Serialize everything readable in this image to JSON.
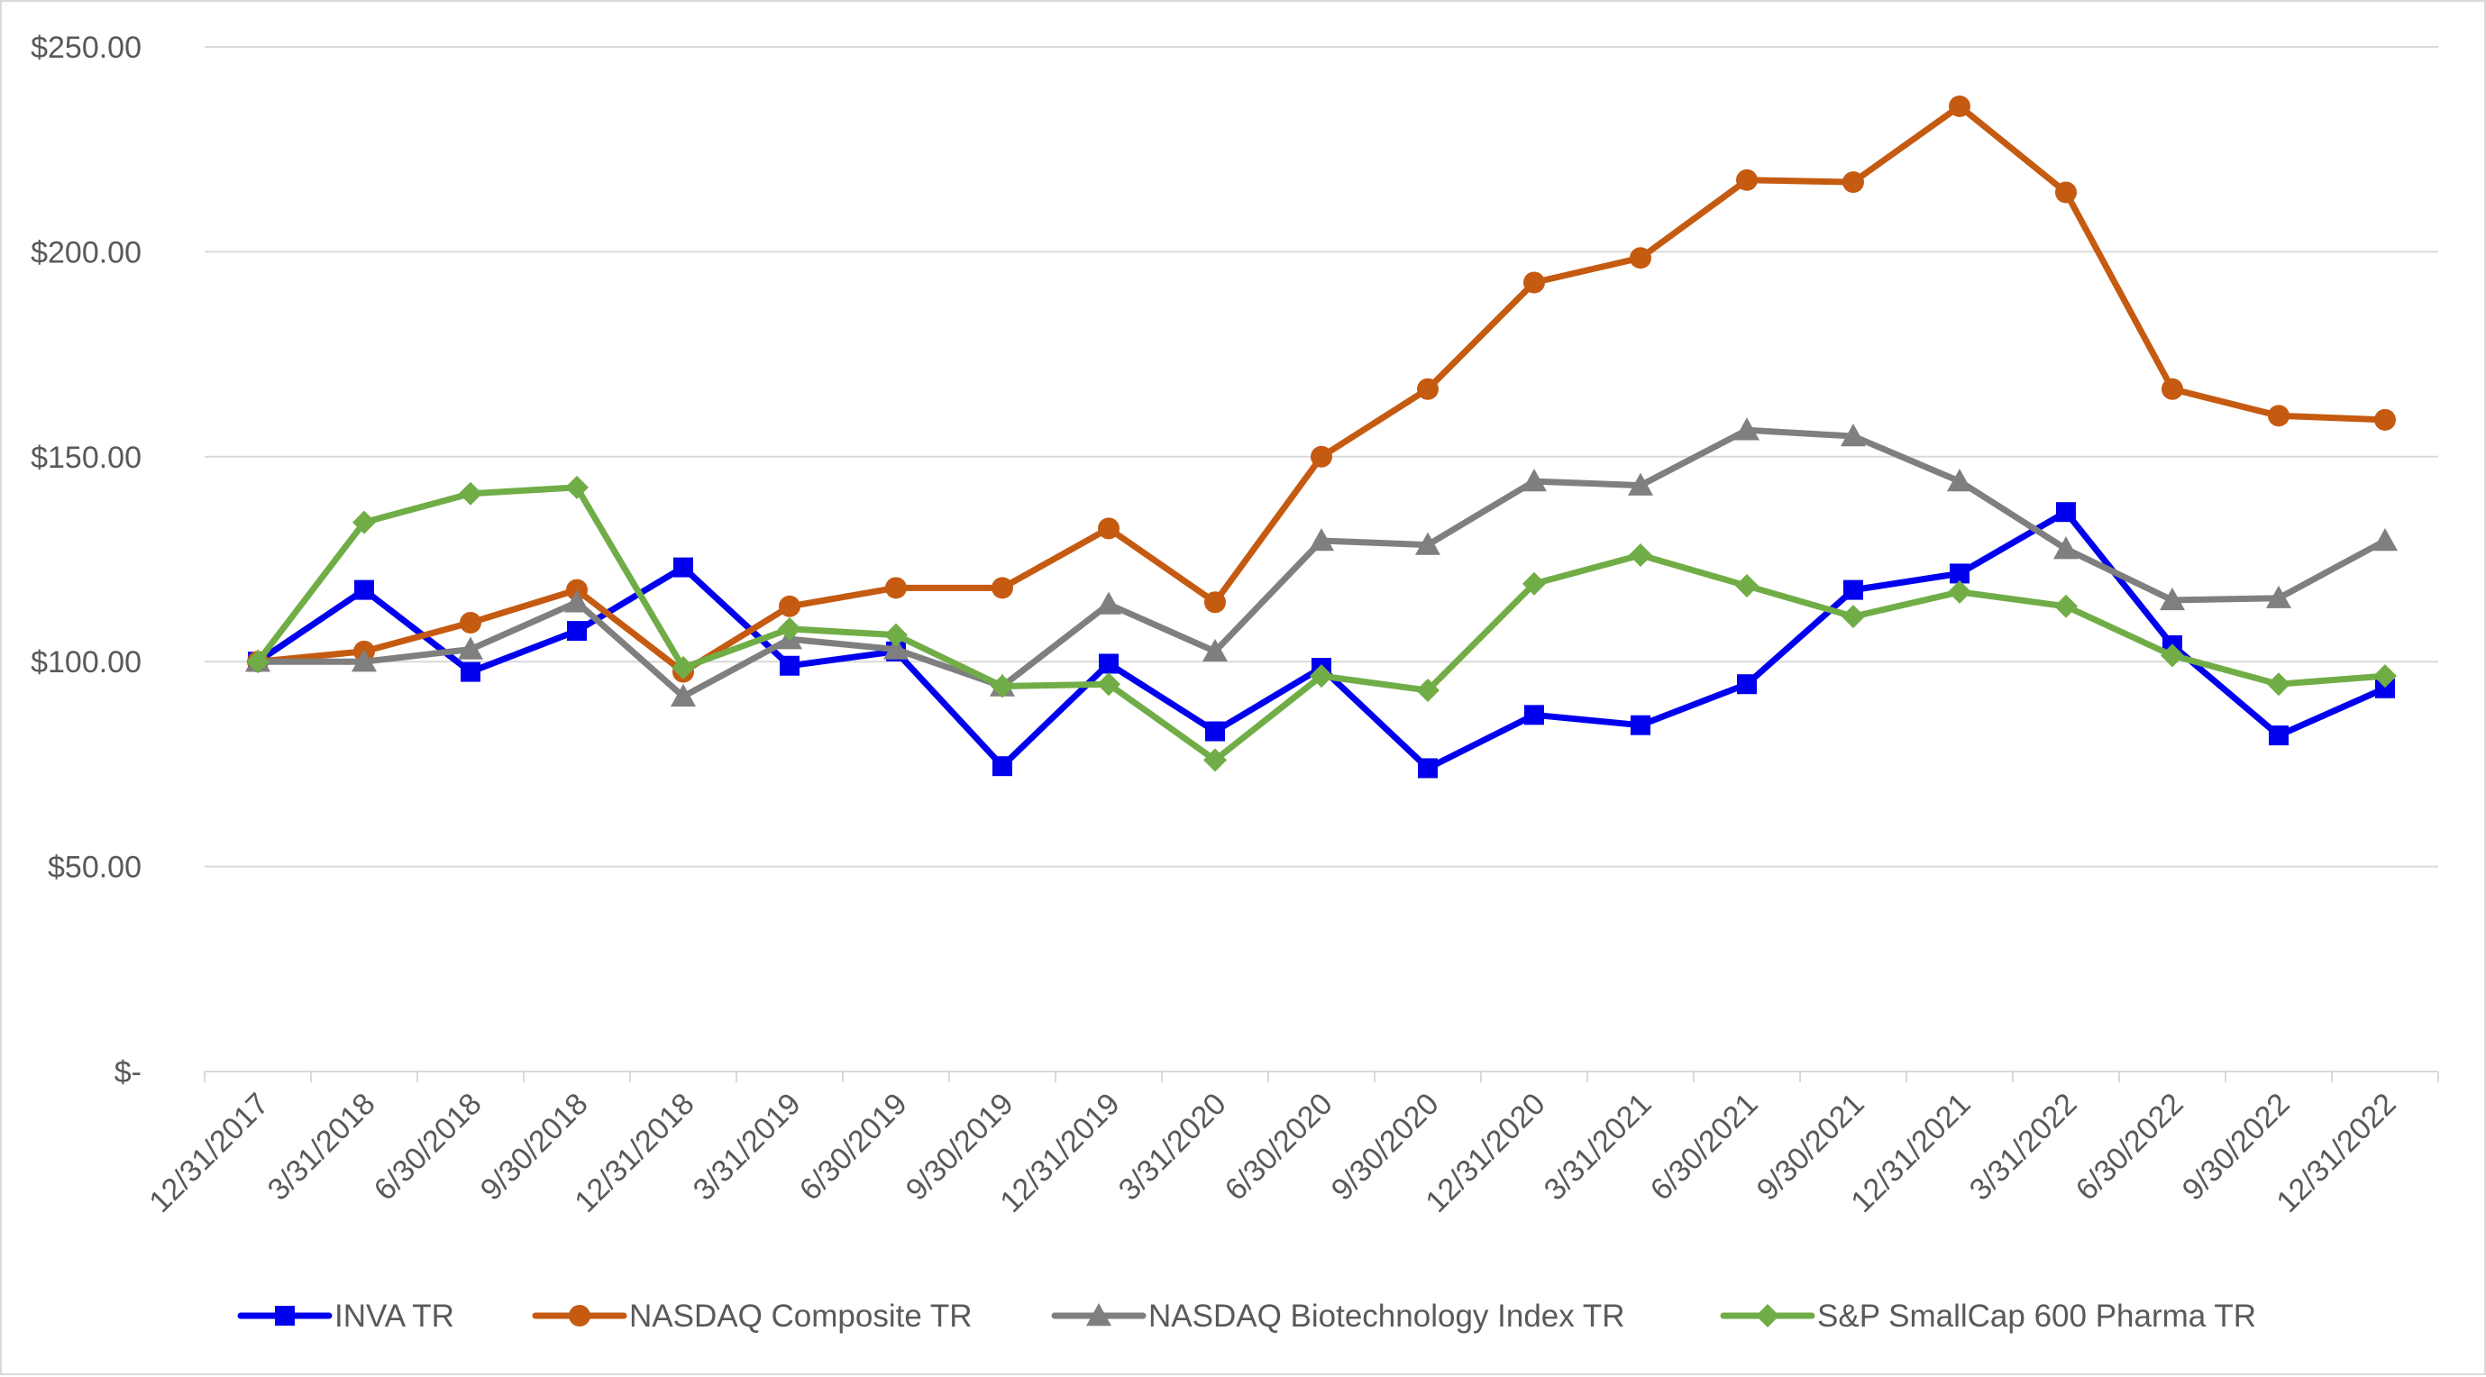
{
  "chart_data": {
    "type": "line",
    "title": "",
    "xlabel": "",
    "ylabel": "",
    "ylim": [
      0,
      250
    ],
    "y_ticks": [
      {
        "value": 0,
        "label": "$-"
      },
      {
        "value": 50,
        "label": "$50.00"
      },
      {
        "value": 100,
        "label": "$100.00"
      },
      {
        "value": 150,
        "label": "$150.00"
      },
      {
        "value": 200,
        "label": "$200.00"
      },
      {
        "value": 250,
        "label": "$250.00"
      }
    ],
    "grid": "horizontal",
    "legend_position": "bottom",
    "categories": [
      "12/31/2017",
      "3/31/2018",
      "6/30/2018",
      "9/30/2018",
      "12/31/2018",
      "3/31/2019",
      "6/30/2019",
      "9/30/2019",
      "12/31/2019",
      "3/31/2020",
      "6/30/2020",
      "9/30/2020",
      "12/31/2020",
      "3/31/2021",
      "6/30/2021",
      "9/30/2021",
      "12/31/2021",
      "3/31/2022",
      "6/30/2022",
      "9/30/2022",
      "12/31/2022"
    ],
    "series": [
      {
        "name": "INVA TR",
        "color": "#0000ee",
        "marker": "square",
        "values": [
          100,
          117.5,
          97.5,
          107.5,
          123,
          99,
          102.5,
          74.5,
          99.5,
          83,
          98.5,
          74,
          87,
          84.5,
          94.5,
          117.5,
          121.5,
          136.5,
          104,
          82,
          93.5
        ]
      },
      {
        "name": "NASDAQ Composite TR",
        "color": "#c55a11",
        "marker": "circle",
        "values": [
          100,
          102.5,
          109.5,
          117.5,
          97.5,
          113.5,
          118,
          118,
          132.5,
          114.5,
          150,
          166.5,
          192.5,
          198.5,
          217.5,
          217,
          235.5,
          214.5,
          166.5,
          160,
          159
        ]
      },
      {
        "name": "NASDAQ Biotechnology Index TR",
        "color": "#7f7f7f",
        "marker": "triangle",
        "values": [
          100,
          100,
          103,
          114.5,
          91.5,
          105.5,
          103,
          94,
          114,
          102.5,
          129.5,
          128.5,
          144,
          143,
          156.5,
          155,
          144,
          127.5,
          115,
          115.5,
          129.5
        ]
      },
      {
        "name": "S&P SmallCap 600 Pharma TR",
        "color": "#70ad47",
        "marker": "diamond",
        "values": [
          100,
          134,
          141,
          142.5,
          98.5,
          108,
          106.5,
          94,
          94.5,
          76,
          96.5,
          93,
          119,
          126,
          118.5,
          111,
          117,
          113.5,
          101.5,
          94.5,
          96.5
        ]
      }
    ]
  }
}
